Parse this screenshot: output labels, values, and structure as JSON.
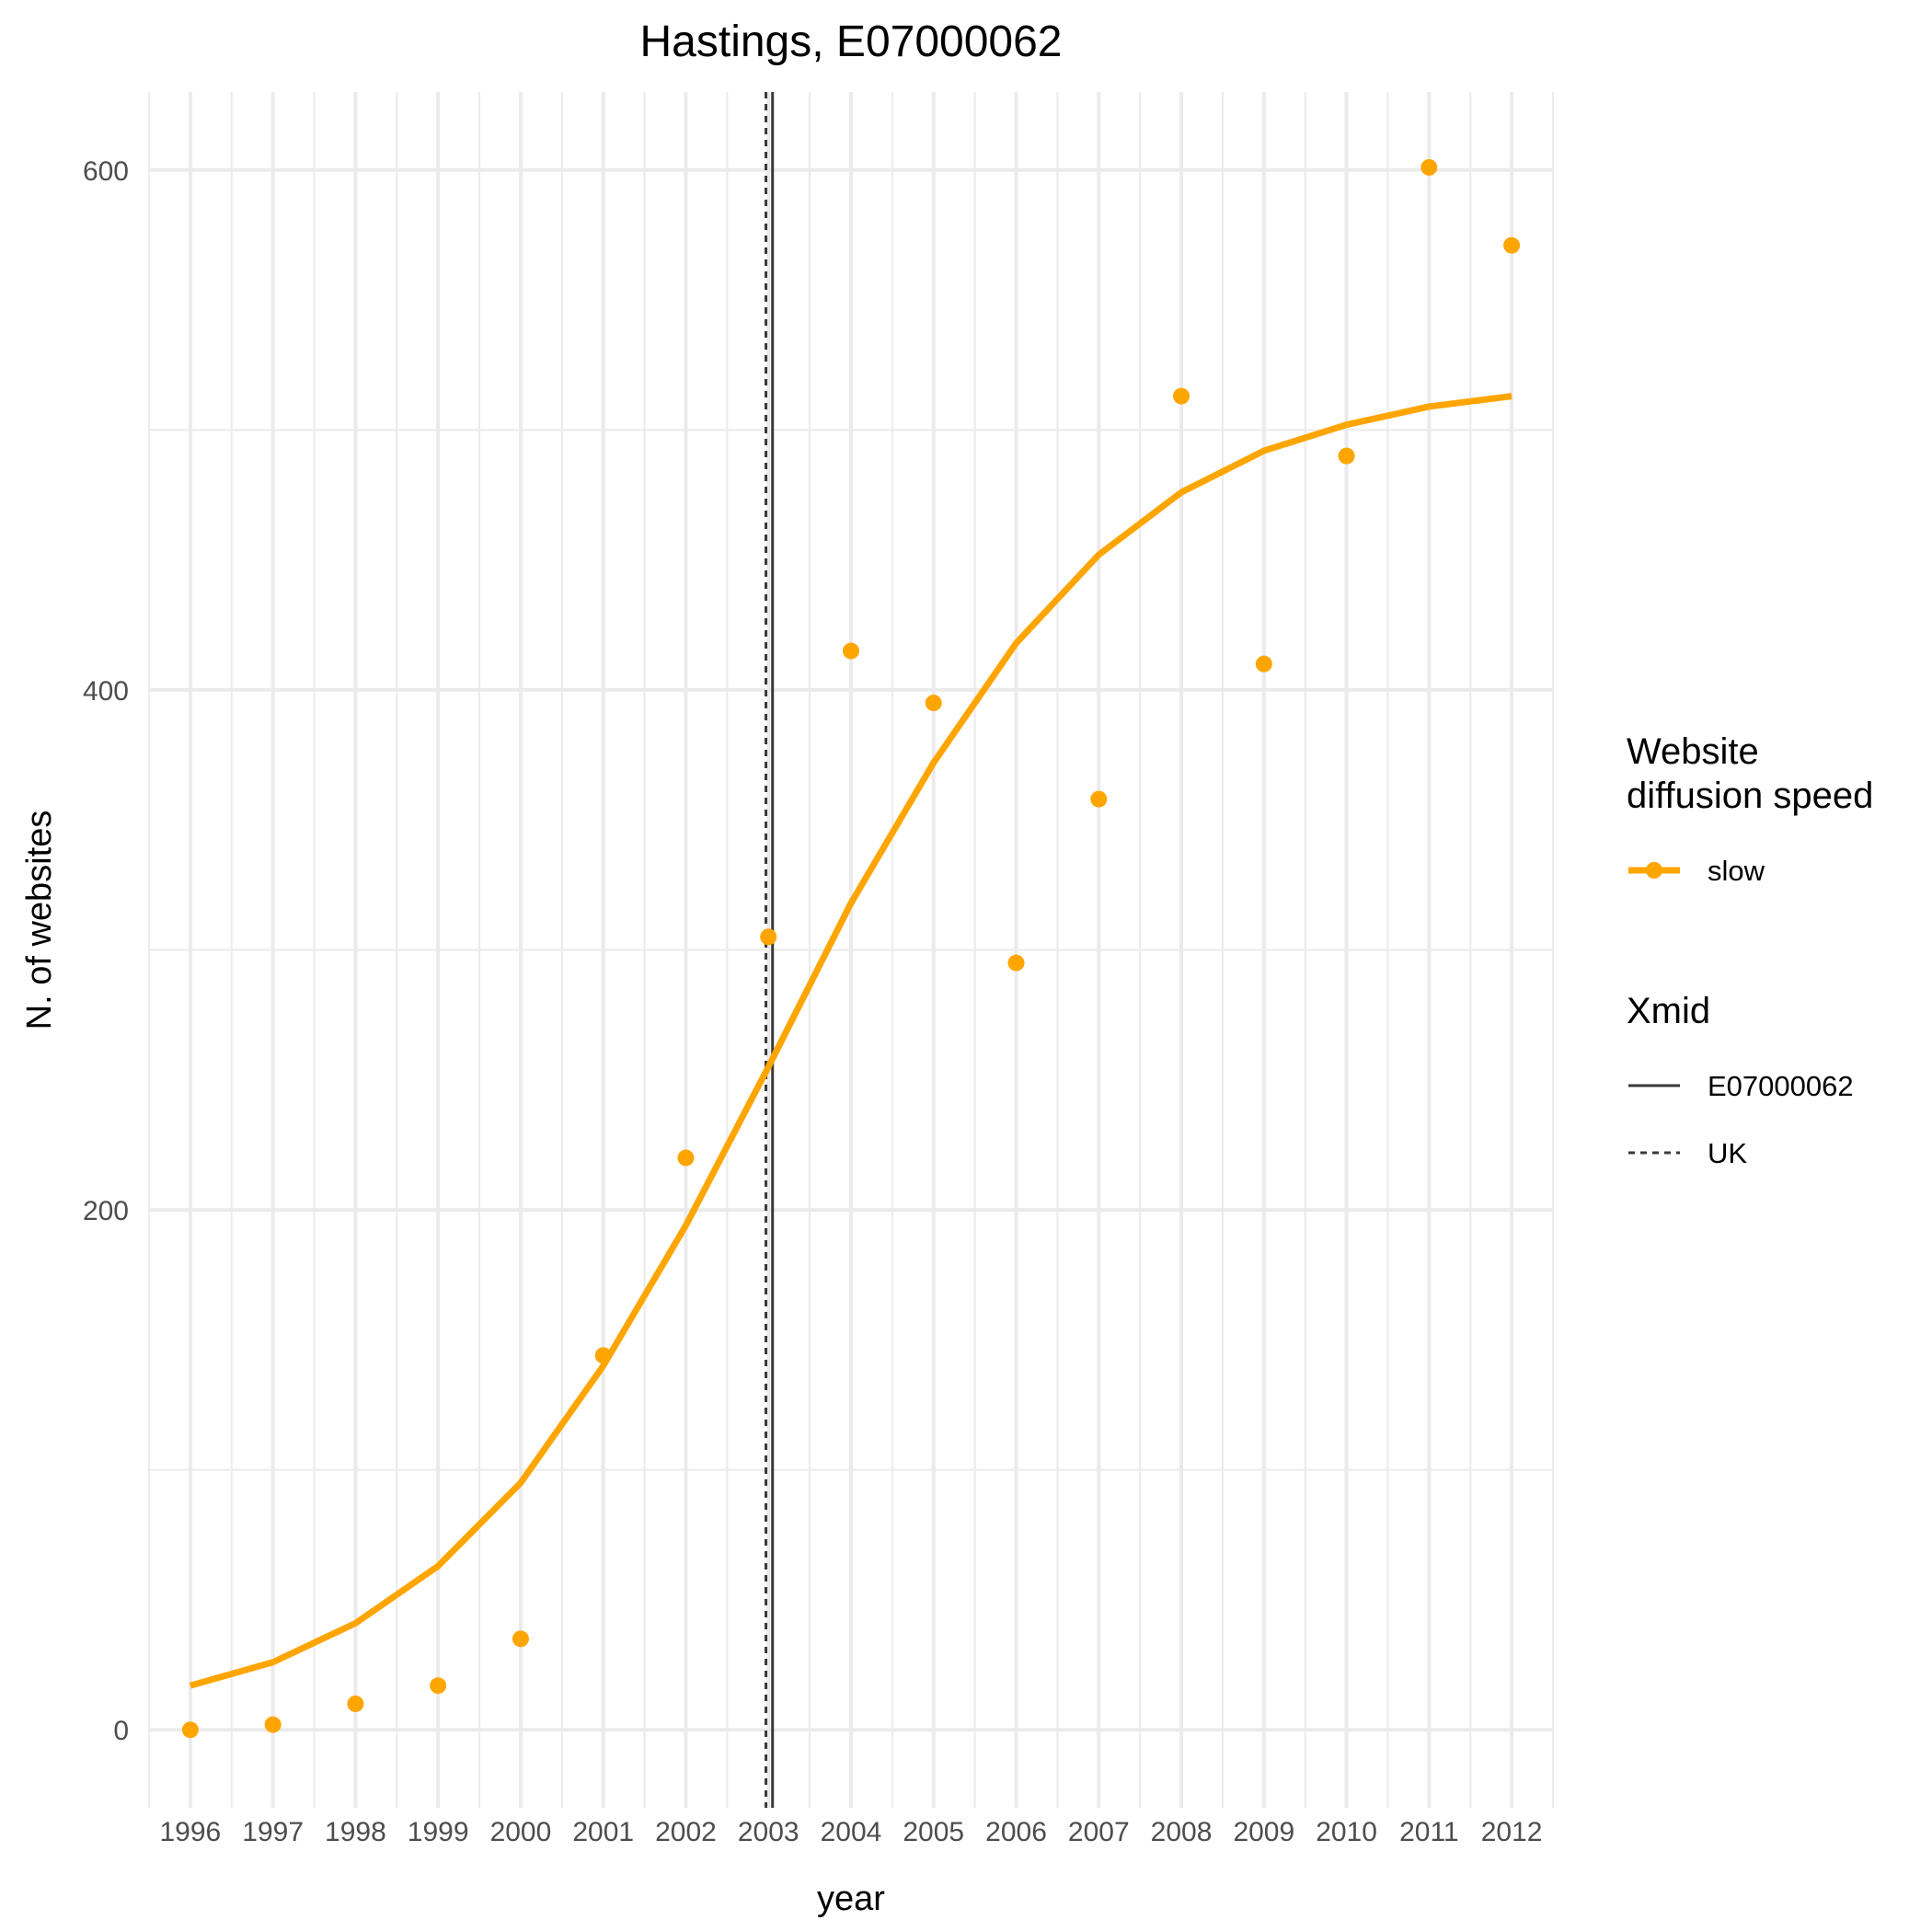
{
  "chart_data": {
    "type": "line",
    "title": "Hastings, E07000062",
    "xlabel": "year",
    "ylabel": "N. of websites",
    "x": [
      1996,
      1997,
      1998,
      1999,
      2000,
      2001,
      2002,
      2003,
      2004,
      2005,
      2006,
      2007,
      2008,
      2009,
      2010,
      2011,
      2012
    ],
    "x_tick_labels": [
      "1996",
      "1997",
      "1998",
      "1999",
      "2000",
      "2001",
      "2002",
      "2003",
      "2004",
      "2005",
      "2006",
      "2007",
      "2008",
      "2009",
      "2010",
      "2011",
      "2012"
    ],
    "xlim": [
      1995.5,
      2012.5
    ],
    "ylim": [
      -30,
      630
    ],
    "y_ticks": [
      0,
      200,
      400,
      600
    ],
    "y_tick_labels": [
      "0",
      "200",
      "400",
      "600"
    ],
    "grid": true,
    "series": [
      {
        "name": "slow",
        "color": "#FFA500",
        "points": [
          0,
          2,
          10,
          17,
          35,
          144,
          220,
          305,
          415,
          395,
          295,
          358,
          513,
          410,
          490,
          601,
          571
        ],
        "fitted": [
          17,
          26,
          41,
          63,
          95,
          140,
          194,
          255,
          318,
          372,
          418,
          452,
          476,
          492,
          502,
          509,
          513
        ]
      }
    ],
    "vlines": [
      {
        "name": "E07000062",
        "x": 2003.05,
        "linetype": "solid",
        "color": "#3a3a3a"
      },
      {
        "name": "UK",
        "x": 2002.97,
        "linetype": "dashed",
        "color": "#3a3a3a"
      }
    ],
    "legend": {
      "placement": "right",
      "groups": [
        {
          "title": "Website diffusion speed",
          "title_lines": [
            "Website",
            "diffusion speed"
          ],
          "items": [
            {
              "label": "slow",
              "type": "line-point",
              "color": "#FFA500"
            }
          ]
        },
        {
          "title": "Xmid",
          "title_lines": [
            "Xmid"
          ],
          "items": [
            {
              "label": "E07000062",
              "type": "solid"
            },
            {
              "label": "UK",
              "type": "dashed"
            }
          ]
        }
      ]
    }
  }
}
